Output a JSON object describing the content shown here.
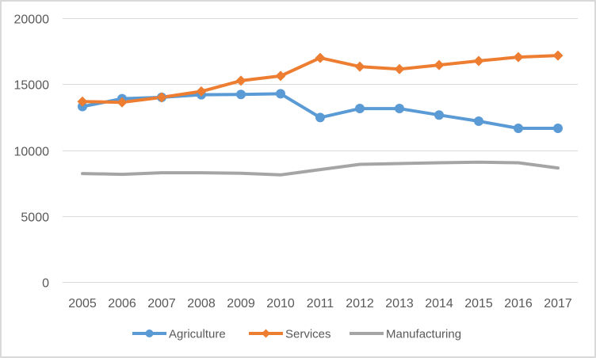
{
  "chart_data": {
    "type": "line",
    "title": "",
    "xlabel": "",
    "ylabel": "",
    "x": [
      "2005",
      "2006",
      "2007",
      "2008",
      "2009",
      "2010",
      "2011",
      "2012",
      "2013",
      "2014",
      "2015",
      "2016",
      "2017"
    ],
    "ylim": [
      0,
      20000
    ],
    "yticks": [
      0,
      5000,
      10000,
      15000,
      20000
    ],
    "ytick_labels": [
      "0",
      "5000",
      "10000",
      "15000",
      "20000"
    ],
    "grid": "horizontal",
    "legend_position": "bottom",
    "series": [
      {
        "name": "Agriculture",
        "color": "#5B9BD5",
        "marker": "circle",
        "values": [
          13300,
          13900,
          14000,
          14200,
          14220,
          14270,
          12470,
          13150,
          13150,
          12660,
          12190,
          11650,
          11650
        ]
      },
      {
        "name": "Services",
        "color": "#ED7D31",
        "marker": "diamond",
        "values": [
          13680,
          13620,
          14000,
          14450,
          15260,
          15620,
          16990,
          16330,
          16140,
          16450,
          16760,
          17050,
          17170
        ]
      },
      {
        "name": "Manufacturing",
        "color": "#A5A5A5",
        "marker": "none",
        "values": [
          8220,
          8160,
          8280,
          8280,
          8240,
          8120,
          8520,
          8920,
          8980,
          9040,
          9080,
          9040,
          8640
        ]
      }
    ]
  }
}
